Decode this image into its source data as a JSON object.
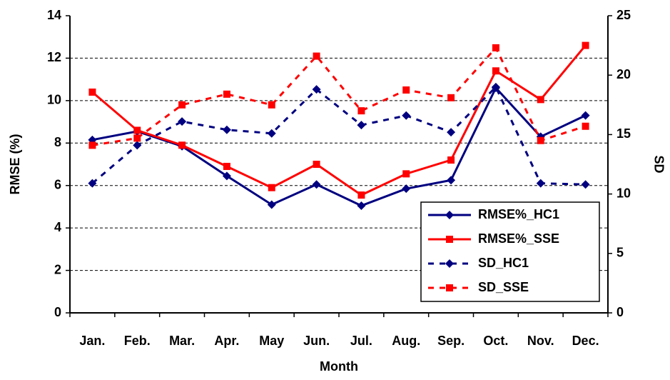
{
  "chart_data": {
    "type": "line",
    "x_label": "Month",
    "y_label": "RMSE (%)",
    "y2_label": "SD",
    "categories": [
      "Jan.",
      "Feb.",
      "Mar.",
      "Apr.",
      "May",
      "Jun.",
      "Jul.",
      "Aug.",
      "Sep.",
      "Oct.",
      "Nov.",
      "Dec."
    ],
    "series": [
      {
        "name": "RMSE%_HC1",
        "color": "#000080",
        "line_style": "solid",
        "marker": "diamond",
        "axis": "y",
        "values": [
          8.15,
          8.55,
          7.85,
          6.45,
          5.1,
          6.05,
          5.05,
          5.85,
          6.25,
          10.6,
          8.3,
          9.3
        ]
      },
      {
        "name": "RMSE%_SSE",
        "color": "#ff0000",
        "line_style": "solid",
        "marker": "square",
        "axis": "y",
        "values": [
          10.4,
          8.6,
          7.9,
          6.9,
          5.9,
          7.0,
          5.55,
          6.55,
          7.2,
          11.4,
          10.05,
          12.6
        ]
      },
      {
        "name": "SD_HC1",
        "color": "#000080",
        "line_style": "dashed",
        "marker": "diamond",
        "axis": "y2",
        "values": [
          10.9,
          14.1,
          16.1,
          15.4,
          15.1,
          18.8,
          15.8,
          16.6,
          15.2,
          19.0,
          10.9,
          10.8
        ]
      },
      {
        "name": "SD_SSE",
        "color": "#ff0000",
        "line_style": "dashed",
        "marker": "square",
        "axis": "y2",
        "values": [
          14.1,
          14.7,
          17.5,
          18.4,
          17.5,
          21.6,
          17.0,
          18.75,
          18.1,
          22.3,
          14.5,
          15.7
        ]
      }
    ],
    "ylim": [
      0,
      14
    ],
    "yticks": [
      0,
      2,
      4,
      6,
      8,
      10,
      12,
      14
    ],
    "y2lim": [
      0,
      25
    ],
    "y2ticks": [
      0,
      5,
      10,
      15,
      20,
      25
    ],
    "grid": true,
    "legend": "lower right"
  }
}
